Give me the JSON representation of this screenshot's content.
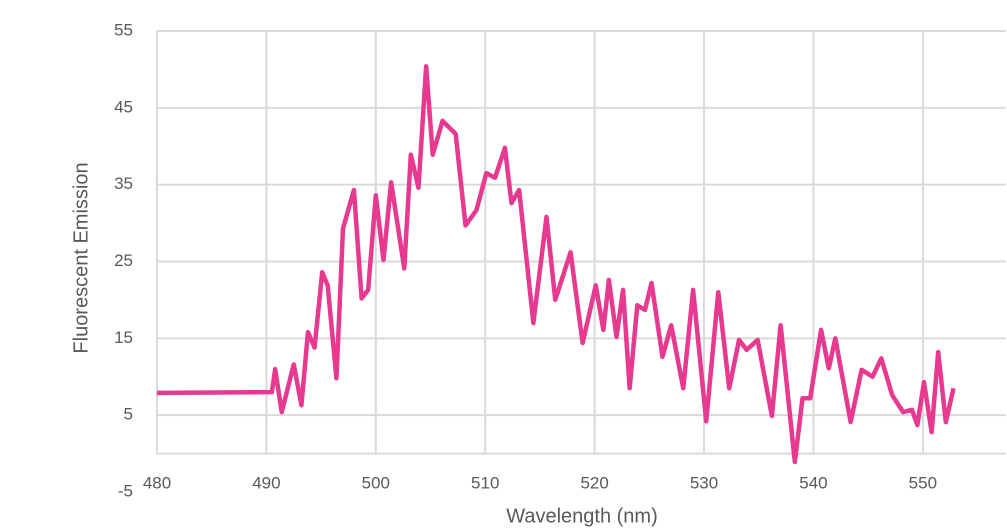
{
  "chart_data": {
    "type": "line",
    "x_label": "Wavelength (nm)",
    "y_label": "Fluorescent Emission",
    "xlim": [
      480,
      557.6
    ],
    "ylim": [
      -5,
      55
    ],
    "xticks": [
      480,
      490,
      500,
      510,
      520,
      530,
      540,
      550
    ],
    "yticks": [
      -5,
      5,
      15,
      25,
      35,
      45,
      55
    ],
    "grid": true,
    "x": [
      480,
      490.5,
      490.8,
      491.4,
      492.5,
      493.2,
      493.8,
      494.4,
      495.1,
      495.6,
      496.4,
      497,
      498,
      498.7,
      499.3,
      500,
      500.7,
      501.4,
      502.6,
      503.2,
      503.9,
      504.6,
      505.2,
      506.1,
      507.3,
      508.2,
      509.2,
      510.1,
      510.9,
      511.8,
      512.4,
      513.1,
      514.4,
      515.6,
      516.4,
      517.8,
      518.9,
      520.1,
      520.8,
      521.3,
      522,
      522.6,
      523.2,
      523.9,
      524.6,
      525.2,
      526.2,
      527,
      528.1,
      529,
      530.2,
      531.3,
      532.3,
      533.2,
      533.9,
      534.9,
      536.2,
      537,
      538.3,
      539,
      539.7,
      540.7,
      541.4,
      542,
      543.4,
      544.4,
      545.4,
      546.2,
      547.2,
      548.2,
      549,
      549.5,
      550.1,
      550.8,
      551.4,
      552.1,
      552.8
    ],
    "series": [
      {
        "name": "Emission",
        "color": "#e6398f",
        "values": [
          7.9,
          8,
          11,
          5.4,
          11.6,
          6.3,
          15.8,
          13.8,
          23.6,
          21.9,
          9.8,
          29.3,
          34.3,
          20.2,
          21.3,
          33.6,
          25.2,
          35.3,
          24.1,
          38.9,
          34.6,
          50.4,
          38.9,
          43.3,
          41.6,
          29.7,
          31.7,
          36.5,
          35.9,
          39.8,
          32.6,
          34.3,
          17,
          30.8,
          20,
          26.2,
          14.4,
          21.9,
          16.1,
          22.6,
          15.2,
          21.3,
          8.5,
          19.3,
          18.7,
          22.2,
          12.6,
          16.7,
          8.5,
          21.3,
          4.2,
          21,
          8.5,
          14.8,
          13.5,
          14.8,
          4.9,
          16.7,
          -1.1,
          7.2,
          7.2,
          16.1,
          11.1,
          15,
          4.1,
          10.9,
          10,
          12.4,
          7.6,
          5.4,
          5.7,
          3.7,
          9.3,
          2.8,
          13.2,
          4.1,
          8.5
        ]
      }
    ]
  }
}
